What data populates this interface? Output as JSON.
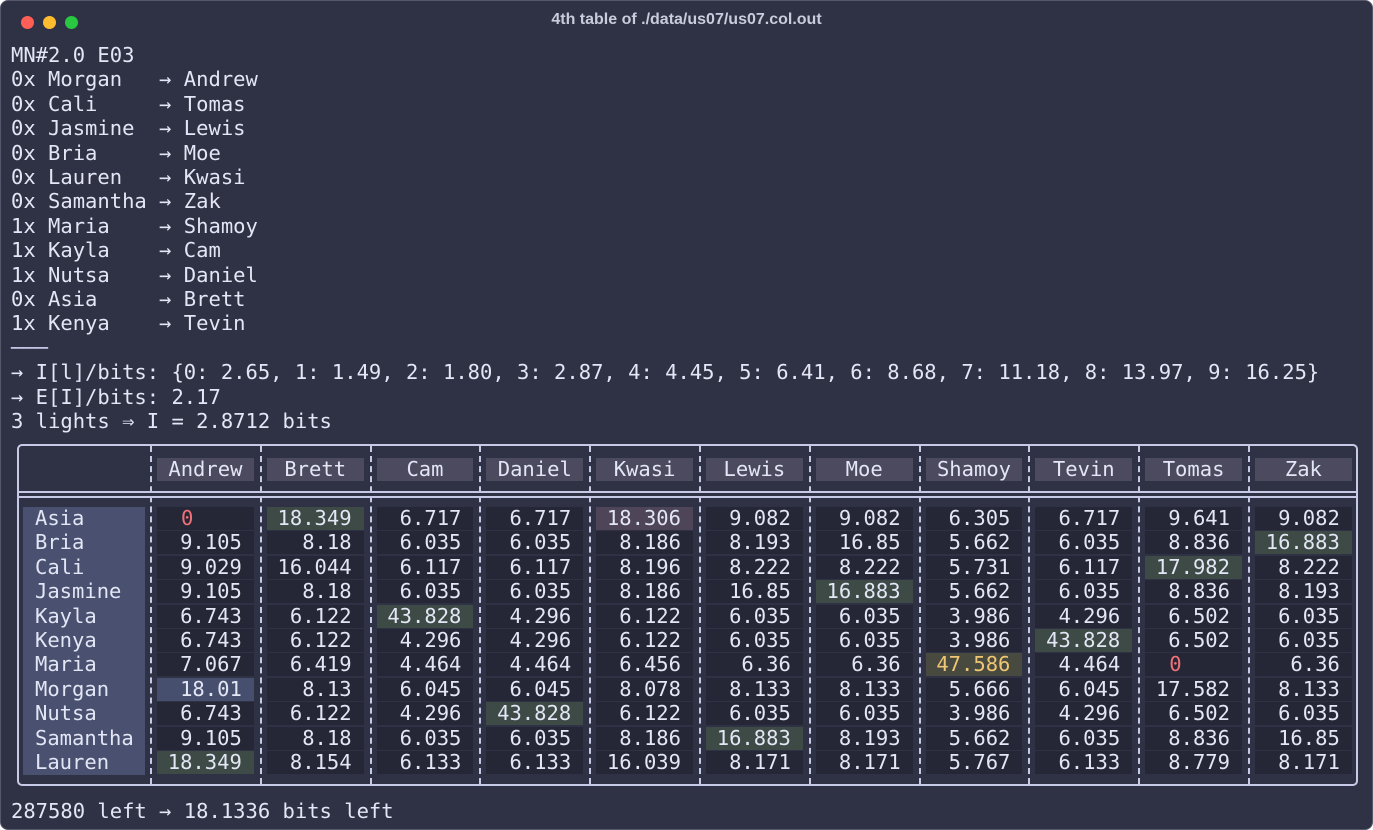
{
  "window": {
    "title": "4th table of ./data/us07/us07.col.out"
  },
  "header": "MN#2.0 E03",
  "pairs": [
    "0x Morgan   → Andrew",
    "0x Cali     → Tomas",
    "0x Jasmine  → Lewis",
    "0x Bria     → Moe",
    "0x Lauren   → Kwasi",
    "0x Samantha → Zak",
    "1x Maria    → Shamoy",
    "1x Kayla    → Cam",
    "1x Nutsa    → Daniel",
    "0x Asia     → Brett",
    "1x Kenya    → Tevin"
  ],
  "separator": "───",
  "info": [
    "→ I[l]/bits: {0: 2.65, 1: 1.49, 2: 1.80, 3: 2.87, 4: 4.45, 5: 6.41, 6: 8.68, 7: 11.18, 8: 13.97, 9: 16.25}",
    "→ E[I]/bits: 2.17",
    "3 lights ⇒ I = 2.8712 bits"
  ],
  "table": {
    "columns": [
      "Andrew",
      "Brett",
      "Cam",
      "Daniel",
      "Kwasi",
      "Lewis",
      "Moe",
      "Shamoy",
      "Tevin",
      "Tomas",
      "Zak"
    ],
    "rows": [
      {
        "label": "Asia",
        "cells": [
          0,
          18.349,
          6.717,
          6.717,
          18.306,
          9.082,
          9.082,
          6.305,
          6.717,
          9.641,
          9.082
        ]
      },
      {
        "label": "Bria",
        "cells": [
          9.105,
          8.18,
          6.035,
          6.035,
          8.186,
          8.193,
          16.85,
          5.662,
          6.035,
          8.836,
          16.883
        ]
      },
      {
        "label": "Cali",
        "cells": [
          9.029,
          16.044,
          6.117,
          6.117,
          8.196,
          8.222,
          8.222,
          5.731,
          6.117,
          17.982,
          8.222
        ]
      },
      {
        "label": "Jasmine",
        "cells": [
          9.105,
          8.18,
          6.035,
          6.035,
          8.186,
          16.85,
          16.883,
          5.662,
          6.035,
          8.836,
          8.193
        ]
      },
      {
        "label": "Kayla",
        "cells": [
          6.743,
          6.122,
          43.828,
          4.296,
          6.122,
          6.035,
          6.035,
          3.986,
          4.296,
          6.502,
          6.035
        ]
      },
      {
        "label": "Kenya",
        "cells": [
          6.743,
          6.122,
          4.296,
          4.296,
          6.122,
          6.035,
          6.035,
          3.986,
          43.828,
          6.502,
          6.035
        ]
      },
      {
        "label": "Maria",
        "cells": [
          7.067,
          6.419,
          4.464,
          4.464,
          6.456,
          6.36,
          6.36,
          47.586,
          4.464,
          0,
          6.36
        ]
      },
      {
        "label": "Morgan",
        "cells": [
          18.01,
          8.13,
          6.045,
          6.045,
          8.078,
          8.133,
          8.133,
          5.666,
          6.045,
          17.582,
          8.133
        ]
      },
      {
        "label": "Nutsa",
        "cells": [
          6.743,
          6.122,
          4.296,
          43.828,
          6.122,
          6.035,
          6.035,
          3.986,
          4.296,
          6.502,
          6.035
        ]
      },
      {
        "label": "Samantha",
        "cells": [
          9.105,
          8.18,
          6.035,
          6.035,
          8.186,
          16.883,
          8.193,
          5.662,
          6.035,
          8.836,
          16.85
        ]
      },
      {
        "label": "Lauren",
        "cells": [
          18.349,
          8.154,
          6.133,
          6.133,
          16.039,
          8.171,
          8.171,
          5.767,
          6.133,
          8.779,
          8.171
        ]
      }
    ]
  },
  "footer": "287580 left → 18.1336 bits left"
}
